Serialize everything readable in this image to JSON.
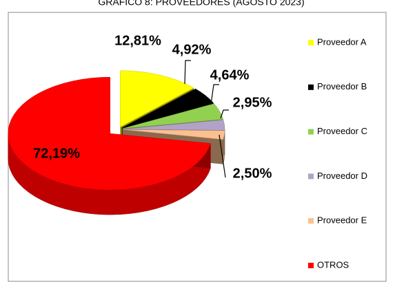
{
  "chart_data": {
    "type": "pie",
    "title": "GRÁFICO 8: PROVEEDORES (AGOSTO 2023)",
    "categories": [
      "Proveedor A",
      "Proveedor B",
      "Proveedor C",
      "Proveedor D",
      "Proveedor E",
      "OTROS"
    ],
    "values": [
      12.81,
      4.92,
      4.64,
      2.95,
      2.5,
      72.19
    ],
    "value_labels": [
      "12,81%",
      "4,92%",
      "4,64%",
      "2,95%",
      "2,50%",
      "72,19%"
    ],
    "colors": [
      "#ffff00",
      "#000000",
      "#92d050",
      "#b3a2c7",
      "#fac090",
      "#ff0000"
    ],
    "legend": "right"
  }
}
